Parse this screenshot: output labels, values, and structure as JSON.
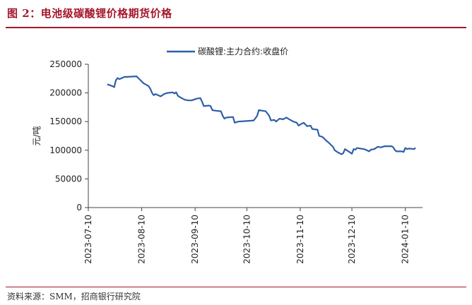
{
  "figure": {
    "title": "图 2：电池级碳酸锂价格期货价格",
    "source": "资料来源：SMM，招商银行研究院"
  },
  "colors": {
    "accent": "#a5162a",
    "series": "#2e5fa7",
    "axis": "#444444"
  },
  "chart_data": {
    "type": "line",
    "ylabel": "元/吨",
    "ylim": [
      0,
      250000
    ],
    "yticks": [
      0,
      50000,
      100000,
      150000,
      200000,
      250000
    ],
    "ytick_labels": [
      "0",
      "50000",
      "100000",
      "150000",
      "200000",
      "250000"
    ],
    "xlim": [
      "2023-07-10",
      "2024-01-20"
    ],
    "xticks": [
      "2023-07-10",
      "2023-08-10",
      "2023-09-10",
      "2023-10-10",
      "2023-11-10",
      "2023-12-10",
      "2024-01-10"
    ],
    "legend": "top",
    "grid": false,
    "series": [
      {
        "name": "碳酸锂:主力合约:收盘价",
        "points": [
          [
            "2023-07-21",
            215000
          ],
          [
            "2023-07-24",
            212000
          ],
          [
            "2023-07-25",
            210000
          ],
          [
            "2023-07-26",
            222000
          ],
          [
            "2023-07-27",
            226000
          ],
          [
            "2023-07-28",
            224000
          ],
          [
            "2023-07-31",
            228000
          ],
          [
            "2023-08-02",
            228000
          ],
          [
            "2023-08-04",
            228500
          ],
          [
            "2023-08-07",
            229000
          ],
          [
            "2023-08-08",
            226000
          ],
          [
            "2023-08-10",
            220000
          ],
          [
            "2023-08-11",
            217000
          ],
          [
            "2023-08-14",
            212000
          ],
          [
            "2023-08-15",
            207000
          ],
          [
            "2023-08-16",
            200000
          ],
          [
            "2023-08-17",
            196000
          ],
          [
            "2023-08-18",
            198000
          ],
          [
            "2023-08-21",
            194000
          ],
          [
            "2023-08-23",
            198000
          ],
          [
            "2023-08-25",
            200000
          ],
          [
            "2023-08-28",
            201000
          ],
          [
            "2023-08-29",
            199000
          ],
          [
            "2023-08-30",
            201000
          ],
          [
            "2023-08-31",
            195000
          ],
          [
            "2023-09-01",
            193000
          ],
          [
            "2023-09-04",
            188000
          ],
          [
            "2023-09-06",
            187000
          ],
          [
            "2023-09-08",
            187000
          ],
          [
            "2023-09-11",
            190000
          ],
          [
            "2023-09-13",
            191000
          ],
          [
            "2023-09-14",
            185000
          ],
          [
            "2023-09-15",
            177000
          ],
          [
            "2023-09-18",
            178000
          ],
          [
            "2023-09-19",
            177000
          ],
          [
            "2023-09-20",
            170000
          ],
          [
            "2023-09-22",
            169000
          ],
          [
            "2023-09-25",
            168000
          ],
          [
            "2023-09-26",
            160000
          ],
          [
            "2023-09-27",
            155000
          ],
          [
            "2023-09-28",
            157000
          ],
          [
            "2023-10-02",
            158000
          ],
          [
            "2023-10-03",
            148000
          ],
          [
            "2023-10-05",
            150000
          ],
          [
            "2023-10-10",
            151000
          ],
          [
            "2023-10-12",
            151500
          ],
          [
            "2023-10-14",
            152000
          ],
          [
            "2023-10-16",
            160000
          ],
          [
            "2023-10-17",
            170000
          ],
          [
            "2023-10-19",
            169000
          ],
          [
            "2023-10-21",
            168000
          ],
          [
            "2023-10-23",
            160000
          ],
          [
            "2023-10-24",
            152000
          ],
          [
            "2023-10-26",
            153000
          ],
          [
            "2023-10-27",
            150000
          ],
          [
            "2023-10-29",
            155000
          ],
          [
            "2023-10-31",
            154000
          ],
          [
            "2023-11-02",
            157000
          ],
          [
            "2023-11-03",
            155000
          ],
          [
            "2023-11-06",
            150000
          ],
          [
            "2023-11-08",
            148000
          ],
          [
            "2023-11-09",
            143000
          ],
          [
            "2023-11-10",
            145000
          ],
          [
            "2023-11-12",
            148000
          ],
          [
            "2023-11-14",
            142000
          ],
          [
            "2023-11-16",
            143000
          ],
          [
            "2023-11-17",
            137000
          ],
          [
            "2023-11-20",
            136000
          ],
          [
            "2023-11-21",
            125000
          ],
          [
            "2023-11-23",
            123000
          ],
          [
            "2023-11-25",
            117000
          ],
          [
            "2023-11-27",
            112000
          ],
          [
            "2023-11-29",
            106000
          ],
          [
            "2023-11-30",
            100000
          ],
          [
            "2023-12-02",
            96000
          ],
          [
            "2023-12-04",
            93000
          ],
          [
            "2023-12-05",
            95000
          ],
          [
            "2023-12-06",
            102000
          ],
          [
            "2023-12-08",
            98000
          ],
          [
            "2023-12-10",
            94000
          ],
          [
            "2023-12-11",
            102000
          ],
          [
            "2023-12-12",
            101000
          ],
          [
            "2023-12-13",
            104000
          ],
          [
            "2023-12-15",
            103000
          ],
          [
            "2023-12-17",
            102000
          ],
          [
            "2023-12-18",
            101000
          ],
          [
            "2023-12-20",
            98000
          ],
          [
            "2023-12-21",
            101000
          ],
          [
            "2023-12-23",
            102000
          ],
          [
            "2023-12-25",
            106000
          ],
          [
            "2023-12-27",
            105000
          ],
          [
            "2023-12-29",
            107000
          ],
          [
            "2024-01-02",
            107000
          ],
          [
            "2024-01-03",
            105000
          ],
          [
            "2024-01-04",
            100000
          ],
          [
            "2024-01-05",
            98000
          ],
          [
            "2024-01-08",
            98000
          ],
          [
            "2024-01-09",
            97000
          ],
          [
            "2024-01-10",
            104000
          ],
          [
            "2024-01-11",
            102000
          ],
          [
            "2024-01-12",
            103000
          ],
          [
            "2024-01-15",
            102000
          ],
          [
            "2024-01-16",
            104000
          ]
        ]
      }
    ]
  }
}
